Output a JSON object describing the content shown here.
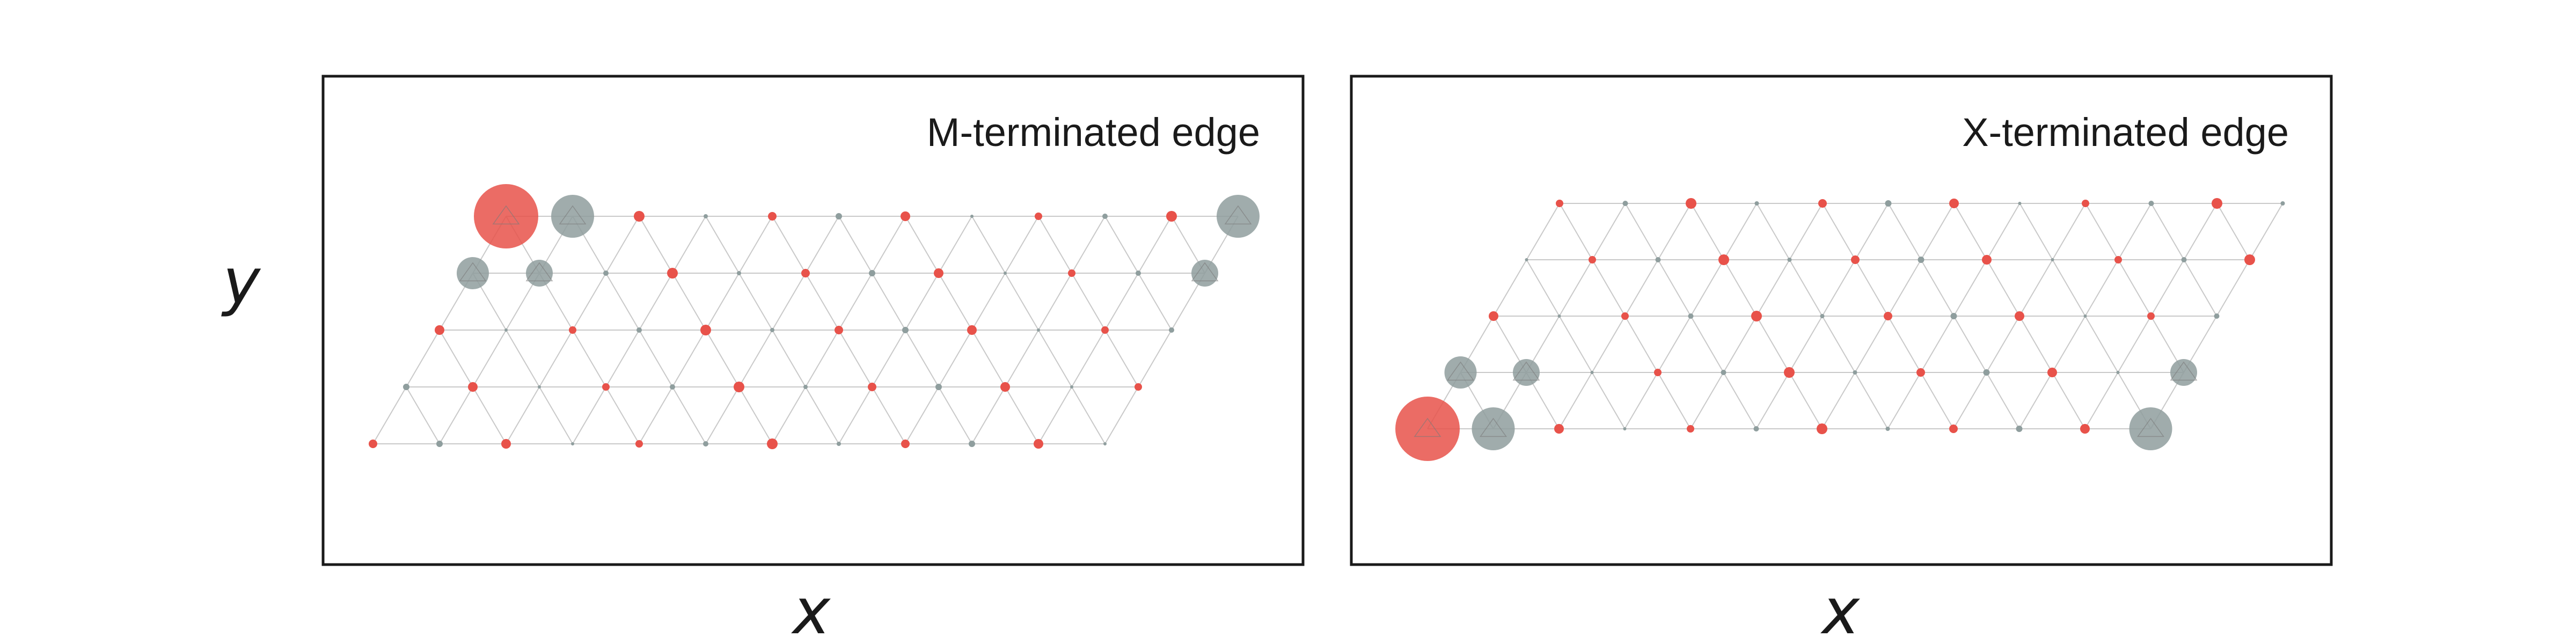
{
  "figure": {
    "y_axis_label": "y",
    "x_axis_label": "x",
    "colors": {
      "metal_site": "#e8524a",
      "chalcogen_site": "#8f9e9e",
      "lattice_line": "#c9c9c9",
      "frame": "#1a1a1a"
    }
  },
  "panels": [
    {
      "title": "M-terminated edge",
      "x_label": "x",
      "lattice": {
        "rows": 5,
        "sites_per_row": 12,
        "shear": "top-row-shifted-right"
      },
      "large_sites": [
        {
          "row": 1,
          "index": 1,
          "species": "metal",
          "relative_size": 1.0
        },
        {
          "row": 1,
          "index": 2,
          "species": "chalcogen",
          "relative_size": 0.6
        },
        {
          "row": 1,
          "index": 12,
          "species": "chalcogen",
          "relative_size": 0.6
        },
        {
          "row": 2,
          "index": 1,
          "species": "chalcogen",
          "relative_size": 0.4
        },
        {
          "row": 2,
          "index": 2,
          "species": "chalcogen",
          "relative_size": 0.3
        },
        {
          "row": 2,
          "index": 12,
          "species": "chalcogen",
          "relative_size": 0.3
        }
      ]
    },
    {
      "title": "X-terminated edge",
      "x_label": "x",
      "lattice": {
        "rows": 5,
        "sites_per_row": 12,
        "shear": "top-row-shifted-right"
      },
      "large_sites": [
        {
          "row": 5,
          "index": 1,
          "species": "metal",
          "relative_size": 1.0
        },
        {
          "row": 5,
          "index": 2,
          "species": "chalcogen",
          "relative_size": 0.6
        },
        {
          "row": 5,
          "index": 12,
          "species": "chalcogen",
          "relative_size": 0.6
        },
        {
          "row": 4,
          "index": 1,
          "species": "chalcogen",
          "relative_size": 0.4
        },
        {
          "row": 4,
          "index": 2,
          "species": "chalcogen",
          "relative_size": 0.3
        },
        {
          "row": 4,
          "index": 12,
          "species": "chalcogen",
          "relative_size": 0.3
        }
      ]
    }
  ]
}
